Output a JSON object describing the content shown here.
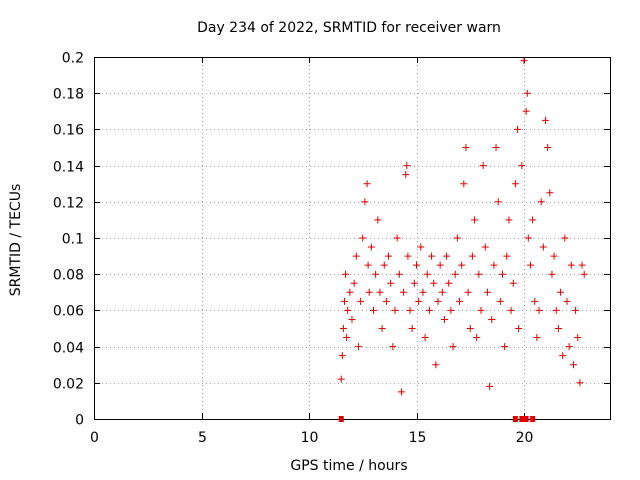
{
  "chart_data": {
    "type": "scatter",
    "title": "Day 234 of 2022, SRMTID for receiver warn",
    "xlabel": "GPS time / hours",
    "ylabel": "SRMTID / TECUs",
    "xlim": [
      0,
      24
    ],
    "ylim": [
      0,
      0.2
    ],
    "x_ticks": [
      0,
      5,
      10,
      15,
      20
    ],
    "x_tick_labels": [
      "0",
      "5",
      "10",
      "15",
      "20"
    ],
    "y_ticks": [
      0,
      0.02,
      0.04,
      0.06,
      0.08,
      0.1,
      0.12,
      0.14,
      0.16,
      0.18,
      0.2
    ],
    "y_tick_labels": [
      "0",
      "0.02",
      "0.04",
      "0.06",
      "0.08",
      "0.1",
      "0.12",
      "0.14",
      "0.16",
      "0.18",
      "0.2"
    ],
    "grid": true,
    "marker": "+",
    "marker_color": "#e00000",
    "zero_markers_x": [
      11.5,
      19.6,
      19.9,
      20.0,
      20.1,
      20.4
    ],
    "series": [
      {
        "name": "SRMTID",
        "x": [
          11.5,
          11.55,
          11.6,
          11.65,
          11.7,
          11.75,
          11.8,
          11.9,
          12.0,
          12.1,
          12.2,
          12.3,
          12.4,
          12.5,
          12.6,
          12.7,
          12.75,
          12.8,
          12.9,
          13.0,
          13.1,
          13.2,
          13.3,
          13.4,
          13.5,
          13.6,
          13.7,
          13.8,
          13.9,
          14.0,
          14.1,
          14.2,
          14.3,
          14.4,
          14.5,
          14.55,
          14.6,
          14.7,
          14.8,
          14.9,
          15.0,
          15.1,
          15.2,
          15.3,
          15.4,
          15.5,
          15.6,
          15.7,
          15.8,
          15.9,
          16.0,
          16.1,
          16.2,
          16.3,
          16.4,
          16.5,
          16.6,
          16.7,
          16.8,
          16.9,
          17.0,
          17.1,
          17.2,
          17.3,
          17.4,
          17.5,
          17.6,
          17.7,
          17.8,
          17.9,
          18.0,
          18.1,
          18.2,
          18.3,
          18.4,
          18.5,
          18.6,
          18.7,
          18.8,
          18.9,
          19.0,
          19.1,
          19.2,
          19.3,
          19.4,
          19.5,
          19.6,
          19.7,
          19.75,
          19.9,
          20.0,
          20.1,
          20.15,
          20.2,
          20.3,
          20.4,
          20.5,
          20.6,
          20.7,
          20.8,
          20.9,
          21.0,
          21.1,
          21.2,
          21.3,
          21.4,
          21.5,
          21.6,
          21.7,
          21.8,
          21.9,
          22.0,
          22.1,
          22.2,
          22.3,
          22.4,
          22.5,
          22.6,
          22.7,
          22.8
        ],
        "y": [
          0.022,
          0.035,
          0.05,
          0.065,
          0.08,
          0.045,
          0.06,
          0.07,
          0.055,
          0.075,
          0.09,
          0.04,
          0.065,
          0.1,
          0.12,
          0.13,
          0.085,
          0.07,
          0.095,
          0.06,
          0.08,
          0.11,
          0.07,
          0.05,
          0.085,
          0.065,
          0.09,
          0.075,
          0.04,
          0.06,
          0.1,
          0.08,
          0.015,
          0.07,
          0.135,
          0.14,
          0.09,
          0.06,
          0.05,
          0.075,
          0.085,
          0.065,
          0.095,
          0.07,
          0.045,
          0.08,
          0.06,
          0.09,
          0.075,
          0.03,
          0.065,
          0.085,
          0.07,
          0.055,
          0.09,
          0.075,
          0.06,
          0.04,
          0.08,
          0.1,
          0.065,
          0.085,
          0.13,
          0.15,
          0.07,
          0.05,
          0.09,
          0.11,
          0.045,
          0.08,
          0.06,
          0.14,
          0.095,
          0.07,
          0.018,
          0.055,
          0.085,
          0.15,
          0.12,
          0.065,
          0.08,
          0.04,
          0.09,
          0.11,
          0.06,
          0.075,
          0.13,
          0.16,
          0.05,
          0.14,
          0.198,
          0.17,
          0.18,
          0.1,
          0.085,
          0.11,
          0.065,
          0.045,
          0.06,
          0.12,
          0.095,
          0.165,
          0.15,
          0.125,
          0.08,
          0.09,
          0.06,
          0.05,
          0.07,
          0.035,
          0.1,
          0.065,
          0.04,
          0.085,
          0.03,
          0.06,
          0.045,
          0.02,
          0.085,
          0.08
        ]
      }
    ]
  }
}
